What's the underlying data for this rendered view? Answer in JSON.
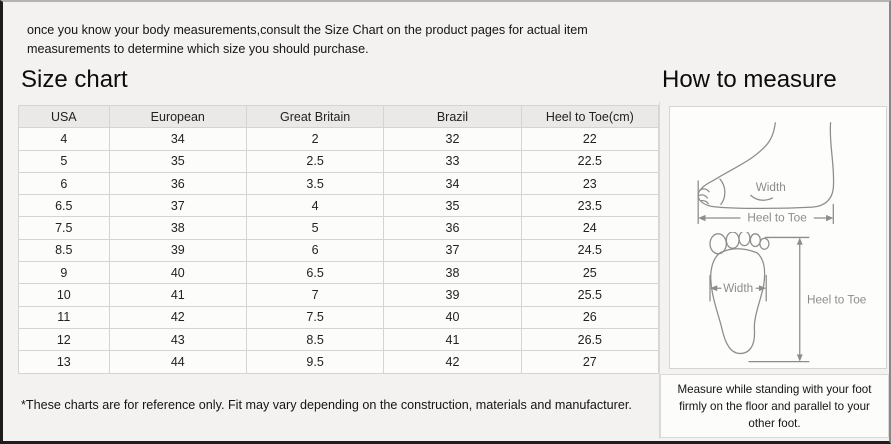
{
  "intro": "once you know your body measurements,consult the Size Chart on the product pages for actual item measurements to determine which size you should purchase.",
  "size_chart": {
    "title": "Size chart",
    "columns": [
      "USA",
      "European",
      "Great Britain",
      "Brazil",
      "Heel to Toe(cm)"
    ],
    "rows": [
      [
        "4",
        "34",
        "2",
        "32",
        "22"
      ],
      [
        "5",
        "35",
        "2.5",
        "33",
        "22.5"
      ],
      [
        "6",
        "36",
        "3.5",
        "34",
        "23"
      ],
      [
        "6.5",
        "37",
        "4",
        "35",
        "23.5"
      ],
      [
        "7.5",
        "38",
        "5",
        "36",
        "24"
      ],
      [
        "8.5",
        "39",
        "6",
        "37",
        "24.5"
      ],
      [
        "9",
        "40",
        "6.5",
        "38",
        "25"
      ],
      [
        "10",
        "41",
        "7",
        "39",
        "25.5"
      ],
      [
        "11",
        "42",
        "7.5",
        "40",
        "26"
      ],
      [
        "12",
        "43",
        "8.5",
        "41",
        "26.5"
      ],
      [
        "13",
        "44",
        "9.5",
        "42",
        "27"
      ]
    ],
    "footnote": "*These charts are for reference only. Fit may vary depending on the construction, materials and manufacturer."
  },
  "how_to_measure": {
    "title": "How to measure",
    "side_view": {
      "width_label": "Width",
      "heel_to_toe_label": "Heel to Toe"
    },
    "sole_view": {
      "width_label": "Width",
      "heel_to_toe_label": "Heel to Toe"
    },
    "note": "Measure while standing with your foot firmly on the floor and parallel to your other foot."
  }
}
